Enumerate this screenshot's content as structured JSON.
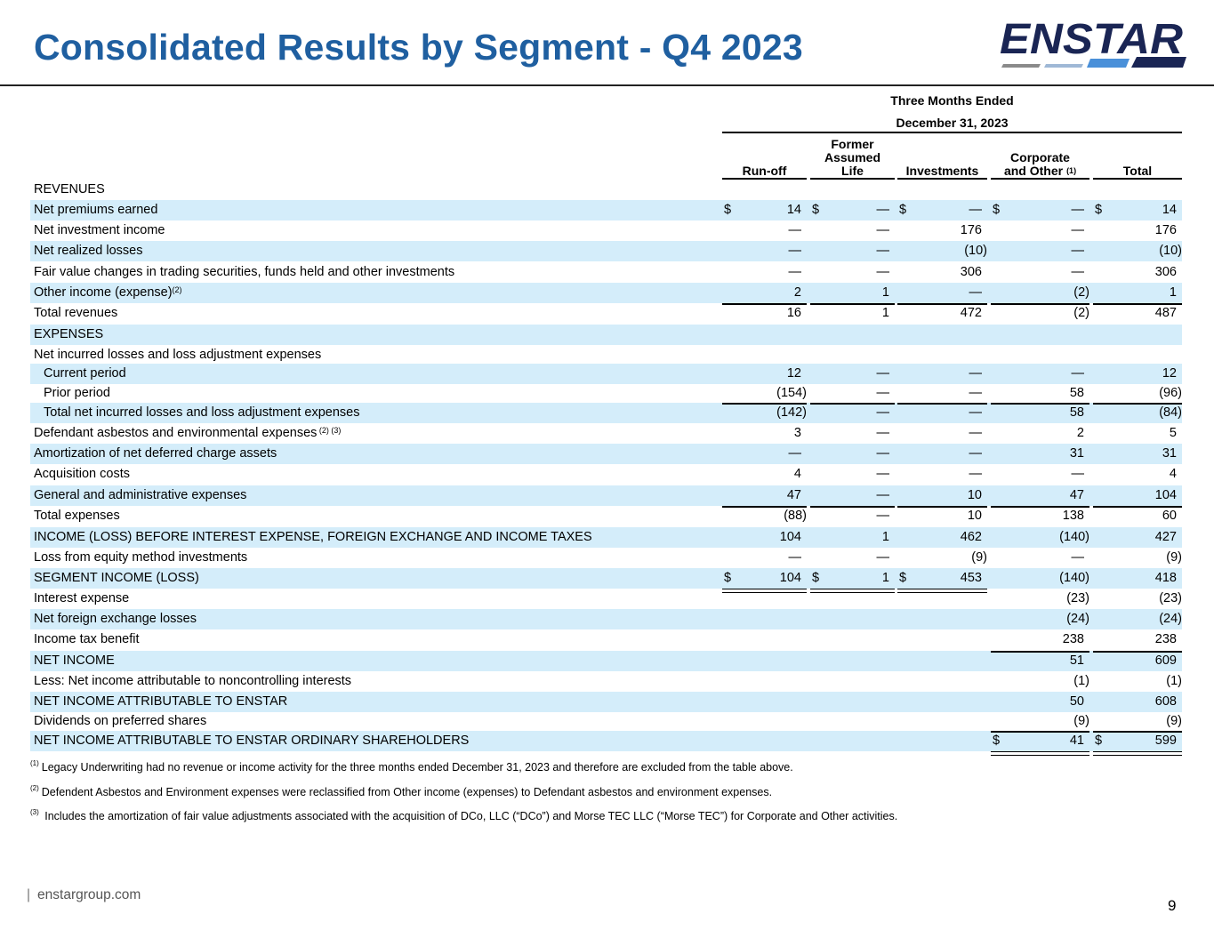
{
  "title": "Consolidated Results by Segment - Q4 2023",
  "logo": {
    "wordmark": "ENSTAR",
    "colors": [
      "#1a2554",
      "#4a90d9",
      "#8a8a8a"
    ]
  },
  "period": {
    "line1": "Three Months Ended",
    "line2": "December 31, 2023"
  },
  "columns": [
    {
      "key": "runoff",
      "label": "Run-off"
    },
    {
      "key": "fal",
      "label": "Former\nAssumed\nLife"
    },
    {
      "key": "inv",
      "label": "Investments"
    },
    {
      "key": "corp",
      "label": "Corporate\nand Other",
      "footnote": "(1)"
    },
    {
      "key": "total",
      "label": "Total"
    }
  ],
  "rows": [
    {
      "label": "REVENUES",
      "shade": false,
      "cells": []
    },
    {
      "label": "Net premiums earned",
      "shade": true,
      "cells": [
        "$|14",
        "$|—",
        "$|—",
        "$|—",
        "$|14"
      ]
    },
    {
      "label": "Net investment income",
      "shade": false,
      "cells": [
        "—",
        "—",
        "176",
        "—",
        "176"
      ]
    },
    {
      "label": "Net realized losses",
      "shade": true,
      "cells": [
        "—",
        "—",
        "(10)",
        "—",
        "(10)"
      ]
    },
    {
      "label": "Fair value changes in trading securities, funds held and other investments",
      "shade": false,
      "cells": [
        "—",
        "—",
        "306",
        "—",
        "306"
      ]
    },
    {
      "label": "Other income (expense)",
      "sup": "(2)",
      "shade": true,
      "cells": [
        "2",
        "1",
        "—",
        "(2)",
        "1"
      ]
    },
    {
      "label": "Total revenues",
      "shade": false,
      "cells": [
        "16",
        "1",
        "472",
        "(2)",
        "487"
      ]
    },
    {
      "label": "EXPENSES",
      "shade": true,
      "cells": []
    },
    {
      "label": "Net incurred losses and loss adjustment expenses",
      "shade": false,
      "cells": []
    },
    {
      "label": "Current period",
      "indent": true,
      "shade": true,
      "cells": [
        "12",
        "—",
        "—",
        "—",
        "12"
      ]
    },
    {
      "label": "Prior period",
      "indent": true,
      "shade": false,
      "cells": [
        "(154)",
        "—",
        "—",
        "58",
        "(96)"
      ]
    },
    {
      "label": "Total net incurred losses and loss adjustment expenses",
      "indent": true,
      "shade": true,
      "cells": [
        "(142)",
        "—",
        "—",
        "58",
        "(84)"
      ]
    },
    {
      "label": "Defendant asbestos and environmental expenses",
      "sup": "(2) (3)",
      "shade": false,
      "cells": [
        "3",
        "—",
        "—",
        "2",
        "5"
      ]
    },
    {
      "label": "Amortization of net deferred charge assets",
      "shade": true,
      "cells": [
        "—",
        "—",
        "—",
        "31",
        "31"
      ]
    },
    {
      "label": "Acquisition costs",
      "shade": false,
      "cells": [
        "4",
        "—",
        "—",
        "—",
        "4"
      ]
    },
    {
      "label": "General and administrative expenses",
      "shade": true,
      "cells": [
        "47",
        "—",
        "10",
        "47",
        "104"
      ]
    },
    {
      "label": "Total expenses",
      "shade": false,
      "cells": [
        "(88)",
        "—",
        "10",
        "138",
        "60"
      ]
    },
    {
      "label": "INCOME (LOSS)  BEFORE INTEREST EXPENSE, FOREIGN EXCHANGE AND INCOME TAXES",
      "shade": true,
      "cells": [
        "104",
        "1",
        "462",
        "(140)",
        "427"
      ]
    },
    {
      "label": "Loss from equity method investments",
      "shade": false,
      "cells": [
        "—",
        "—",
        "(9)",
        "—",
        "(9)"
      ]
    },
    {
      "label": "SEGMENT INCOME (LOSS)",
      "shade": true,
      "cells": [
        "$|104",
        "$|1",
        "$|453",
        "(140)",
        "418"
      ]
    },
    {
      "label": "Interest expense",
      "shade": false,
      "cells": [
        "",
        "",
        "",
        "(23)",
        "(23)"
      ]
    },
    {
      "label": "Net foreign exchange losses",
      "shade": true,
      "cells": [
        "",
        "",
        "",
        "(24)",
        "(24)"
      ]
    },
    {
      "label": "Income tax benefit",
      "shade": false,
      "cells": [
        "",
        "",
        "",
        "238",
        "238"
      ]
    },
    {
      "label": "NET INCOME",
      "shade": true,
      "cells": [
        "",
        "",
        "",
        "51",
        "609"
      ]
    },
    {
      "label": "Less: Net income attributable to noncontrolling interests",
      "shade": false,
      "cells": [
        "",
        "",
        "",
        "(1)",
        "(1)"
      ]
    },
    {
      "label": "NET INCOME ATTRIBUTABLE TO ENSTAR",
      "shade": true,
      "cells": [
        "",
        "",
        "",
        "50",
        "608"
      ]
    },
    {
      "label": "Dividends on preferred shares",
      "shade": false,
      "cells": [
        "",
        "",
        "",
        "(9)",
        "(9)"
      ]
    },
    {
      "label": "NET INCOME ATTRIBUTABLE TO ENSTAR ORDINARY SHAREHOLDERS",
      "shade": true,
      "cells": [
        "",
        "",
        "",
        "$|41",
        "$|599"
      ]
    }
  ],
  "footnotes": [
    {
      "mark": "(1)",
      "text": "Legacy Underwriting had no revenue or income activity for the three months ended December 31, 2023 and therefore are excluded from the table above."
    },
    {
      "mark": "(2)",
      "text": "Defendent Asbestos and Environment expenses were reclassified from Other income (expenses) to Defendant asbestos and environment expenses."
    },
    {
      "mark": "(3)",
      "text": " Includes the amortization of fair value adjustments associated with the acquisition of DCo, LLC (“DCo”) and Morse TEC LLC (“Morse TEC”) for Corporate and Other activities."
    }
  ],
  "footer": {
    "site": "enstargroup.com",
    "page": "9"
  }
}
